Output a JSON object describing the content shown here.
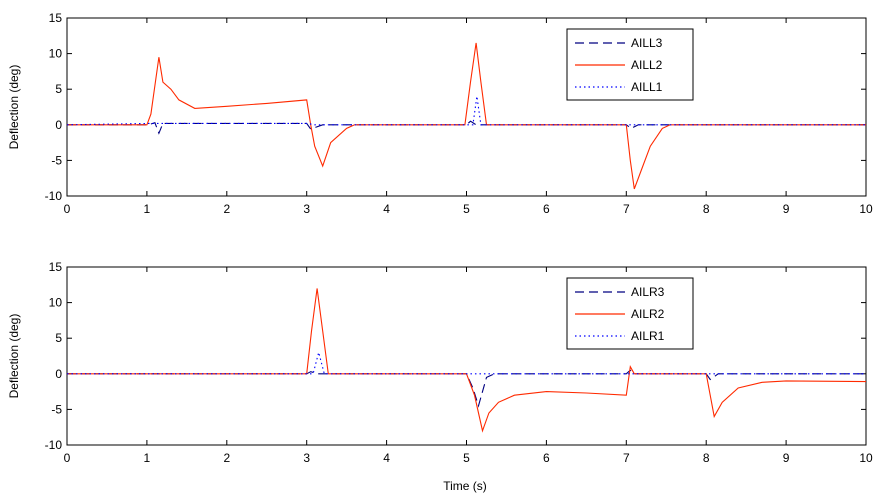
{
  "chart_data": [
    {
      "type": "line",
      "title": "",
      "xlabel": "",
      "ylabel": "Deflection (deg)",
      "xlim": [
        0,
        10
      ],
      "ylim": [
        -10,
        15
      ],
      "xticks": [
        0,
        1,
        2,
        3,
        4,
        5,
        6,
        7,
        8,
        9,
        10
      ],
      "yticks": [
        -10,
        -5,
        0,
        5,
        10,
        15
      ],
      "grid": false,
      "legend_position": "top-right",
      "series": [
        {
          "name": "AILL3",
          "color": "#000080",
          "style": "dashed",
          "points": [
            [
              0,
              0
            ],
            [
              1.02,
              0
            ],
            [
              1.1,
              0.3
            ],
            [
              1.15,
              -1.2
            ],
            [
              1.2,
              0.2
            ],
            [
              3.0,
              0.2
            ],
            [
              3.05,
              -0.6
            ],
            [
              3.2,
              0
            ],
            [
              5.0,
              0
            ],
            [
              5.05,
              0.5
            ],
            [
              5.12,
              0
            ],
            [
              7.0,
              0
            ],
            [
              7.06,
              -0.5
            ],
            [
              7.15,
              0
            ],
            [
              10,
              0
            ]
          ]
        },
        {
          "name": "AILL2",
          "color": "#ff2a00",
          "style": "solid",
          "points": [
            [
              0,
              0
            ],
            [
              1.0,
              0
            ],
            [
              1.05,
              1.5
            ],
            [
              1.1,
              5.5
            ],
            [
              1.15,
              9.5
            ],
            [
              1.2,
              6
            ],
            [
              1.3,
              5
            ],
            [
              1.4,
              3.5
            ],
            [
              1.6,
              2.3
            ],
            [
              2.0,
              2.6
            ],
            [
              2.5,
              3.0
            ],
            [
              3.0,
              3.5
            ],
            [
              3.05,
              0
            ],
            [
              3.1,
              -3
            ],
            [
              3.2,
              -5.8
            ],
            [
              3.3,
              -2.5
            ],
            [
              3.5,
              -0.5
            ],
            [
              3.6,
              0
            ],
            [
              4.98,
              0
            ],
            [
              5.05,
              6
            ],
            [
              5.12,
              11.5
            ],
            [
              5.18,
              6
            ],
            [
              5.25,
              0
            ],
            [
              7.0,
              0
            ],
            [
              7.05,
              -5
            ],
            [
              7.1,
              -9
            ],
            [
              7.2,
              -6
            ],
            [
              7.3,
              -3
            ],
            [
              7.45,
              -0.5
            ],
            [
              7.55,
              0
            ],
            [
              10,
              0
            ]
          ]
        },
        {
          "name": "AILL1",
          "color": "#0000ff",
          "style": "dotted",
          "points": [
            [
              0,
              0
            ],
            [
              1.05,
              0.2
            ],
            [
              1.15,
              0.2
            ],
            [
              3.0,
              0.2
            ],
            [
              3.1,
              0
            ],
            [
              5.08,
              0
            ],
            [
              5.13,
              4
            ],
            [
              5.18,
              0
            ],
            [
              10,
              0
            ]
          ]
        }
      ]
    },
    {
      "type": "line",
      "title": "",
      "xlabel": "Time (s)",
      "ylabel": "Deflection (deg)",
      "xlim": [
        0,
        10
      ],
      "ylim": [
        -10,
        15
      ],
      "xticks": [
        0,
        1,
        2,
        3,
        4,
        5,
        6,
        7,
        8,
        9,
        10
      ],
      "yticks": [
        -10,
        -5,
        0,
        5,
        10,
        15
      ],
      "grid": false,
      "legend_position": "top-right",
      "series": [
        {
          "name": "AILR3",
          "color": "#000080",
          "style": "dashed",
          "points": [
            [
              0,
              0
            ],
            [
              3.0,
              0
            ],
            [
              3.05,
              0.3
            ],
            [
              3.15,
              0
            ],
            [
              5.0,
              0
            ],
            [
              5.08,
              -2
            ],
            [
              5.15,
              -4.5
            ],
            [
              5.25,
              -0.5
            ],
            [
              5.35,
              0
            ],
            [
              7.0,
              0
            ],
            [
              7.05,
              0.5
            ],
            [
              7.1,
              0
            ],
            [
              8.0,
              0
            ],
            [
              8.05,
              -0.8
            ],
            [
              8.15,
              0
            ],
            [
              10,
              0
            ]
          ]
        },
        {
          "name": "AILR2",
          "color": "#ff2a00",
          "style": "solid",
          "points": [
            [
              0,
              0
            ],
            [
              3.0,
              0
            ],
            [
              3.06,
              6
            ],
            [
              3.13,
              12
            ],
            [
              3.2,
              6
            ],
            [
              3.27,
              0
            ],
            [
              5.0,
              0
            ],
            [
              5.1,
              -3
            ],
            [
              5.2,
              -8
            ],
            [
              5.28,
              -5.5
            ],
            [
              5.4,
              -4
            ],
            [
              5.6,
              -3
            ],
            [
              6.0,
              -2.5
            ],
            [
              6.5,
              -2.7
            ],
            [
              7.0,
              -3.0
            ],
            [
              7.05,
              1.0
            ],
            [
              7.1,
              0
            ],
            [
              8.0,
              0
            ],
            [
              8.05,
              -3
            ],
            [
              8.1,
              -6
            ],
            [
              8.2,
              -4
            ],
            [
              8.4,
              -2
            ],
            [
              8.7,
              -1.2
            ],
            [
              9.0,
              -1.0
            ],
            [
              10,
              -1.1
            ]
          ]
        },
        {
          "name": "AILR1",
          "color": "#0000ff",
          "style": "dotted",
          "points": [
            [
              0,
              0
            ],
            [
              3.08,
              0
            ],
            [
              3.15,
              3
            ],
            [
              3.22,
              0
            ],
            [
              10,
              0
            ]
          ]
        }
      ]
    }
  ]
}
